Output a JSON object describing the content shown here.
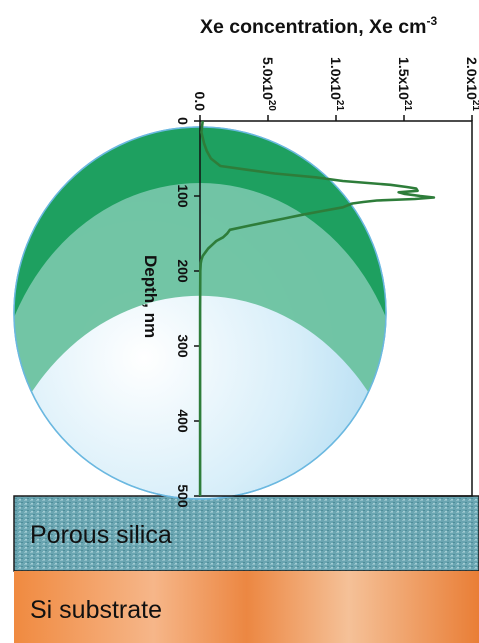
{
  "chart_data": {
    "type": "line",
    "title": "Xe concentration, Xe cm",
    "title_superscript": "-3",
    "xlabel": "Depth, nm",
    "xlim": [
      0,
      500
    ],
    "x_ticks": [
      "0",
      "100",
      "200",
      "300",
      "400",
      "500"
    ],
    "ylim": [
      0,
      2e+21
    ],
    "y_ticks": [
      {
        "mantissa": "0.0",
        "exp": ""
      },
      {
        "mantissa": "5.0x10",
        "exp": "20"
      },
      {
        "mantissa": "1.0x10",
        "exp": "21"
      },
      {
        "mantissa": "1.5x10",
        "exp": "21"
      },
      {
        "mantissa": "2.0x10",
        "exp": "21"
      }
    ],
    "orientation": "rotated-90-clockwise",
    "series": [
      {
        "color": "#2e7d3a",
        "x": [
          0,
          15,
          30,
          40,
          50,
          60,
          65,
          70,
          75,
          80,
          85,
          88,
          90,
          93,
          95,
          97,
          100,
          102,
          104,
          106,
          108,
          110,
          115,
          120,
          125,
          130,
          135,
          140,
          145,
          150,
          155,
          160,
          165,
          170,
          175,
          180,
          185,
          190,
          200,
          250,
          300,
          350,
          400,
          450,
          500
        ],
        "y": [
          2e+19,
          1e+19,
          3e+19,
          5e+19,
          8e+19,
          1.5e+20,
          3.5e+20,
          5.5e+20,
          8.5e+20,
          1.05e+21,
          1.4e+21,
          1.52e+21,
          1.59e+21,
          1.6e+21,
          1.46e+21,
          1.5e+21,
          1.62e+21,
          1.72e+21,
          1.58e+21,
          1.3e+21,
          1.2e+21,
          1.12e+21,
          1.05e+21,
          9e+20,
          7.5e+20,
          6.2e+20,
          4.8e+20,
          3.5e+20,
          2.2e+20,
          2e+20,
          1.7e+20,
          1.2e+20,
          9e+19,
          6e+19,
          4e+19,
          2e+19,
          1e+19,
          5e+18,
          2e+18,
          1e+18,
          1e+18,
          1e+18,
          1e+18,
          1e+18,
          1e+18
        ]
      }
    ],
    "illustration": {
      "layers": [
        "Porous silica",
        "Si substrate"
      ]
    },
    "colors": {
      "line": "#2e7d3a",
      "sphere": "#bfe3f5",
      "band_light": "#6cc2a0",
      "band_dark": "#1ea060",
      "porous_silica": "#6aa4b0",
      "si_substrate": "#ee8a44"
    }
  }
}
